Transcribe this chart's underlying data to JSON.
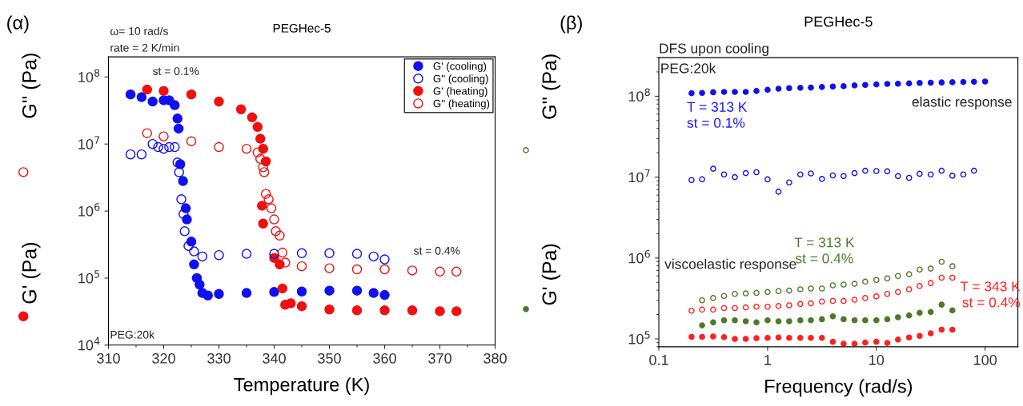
{
  "chart_data": [
    {
      "type": "scatter",
      "title": "PEGHec-5",
      "xlabel": "Temperature (K)",
      "ylabel": [
        "G'' (Pa)",
        "G' (Pa)"
      ],
      "log": "y",
      "grid": false,
      "legend": "top right",
      "marker": "circle",
      "xlim": [
        310,
        380
      ],
      "xticks": [
        310,
        320,
        330,
        340,
        350,
        360,
        370,
        380
      ],
      "ylim": [
        10000,
        200000000
      ],
      "yticks": [
        {
          "value": 10000,
          "label": "10$^{4}$"
        },
        {
          "value": 100000,
          "label": "10$^{5}$"
        },
        {
          "value": 1000000,
          "label": "10$^{6}$"
        },
        {
          "value": 10000000,
          "label": "10$^{7}$"
        },
        {
          "value": 100000000,
          "label": "10$^{8}$"
        }
      ],
      "annotations": [
        "(α)",
        "ω= 10 rad/s",
        "rate = 2 K/min",
        "st = 0.1%",
        "st = 0.4%",
        "PEG:20k"
      ],
      "series": [
        {
          "name": "G' (cooling)",
          "color": "#1010f0",
          "x": [
            314,
            316,
            318,
            320,
            321,
            322,
            322.5,
            322.7,
            323,
            323.5,
            324,
            324.2,
            325,
            325.5,
            326,
            326.5,
            327,
            328,
            330,
            335,
            340,
            345,
            350,
            355,
            358,
            360
          ],
          "values": [
            55000000,
            50000000,
            43000000,
            45000000,
            45000000,
            38000000,
            24000000,
            17000000,
            5000000,
            2800000,
            1100000,
            750000,
            350000,
            160000,
            100000,
            80000,
            60000,
            55000,
            58000,
            60000,
            62000,
            63000,
            65000,
            65000,
            60000,
            56000
          ]
        },
        {
          "name": "G'' (cooling)",
          "color": "#1010f0",
          "x": [
            314,
            316,
            318,
            319,
            320,
            321,
            322,
            322.5,
            322.8,
            323.2,
            323.6,
            323.8,
            324.5,
            325.5,
            327,
            330,
            335,
            340,
            345,
            350,
            355,
            358,
            360
          ],
          "values": [
            7000000,
            7000000,
            10000000,
            9000000,
            8500000,
            9000000,
            9000000,
            5300000,
            3800000,
            1500000,
            900000,
            500000,
            300000,
            250000,
            210000,
            220000,
            230000,
            230000,
            235000,
            235000,
            230000,
            210000,
            190000
          ]
        },
        {
          "name": "G' (heating)",
          "color": "#f01010",
          "x": [
            317,
            320,
            325,
            330,
            334,
            336,
            337,
            337.5,
            338,
            338.5,
            337.8,
            338,
            340,
            341,
            341.5,
            342,
            343,
            345,
            350,
            355,
            360,
            365,
            370,
            373
          ],
          "values": [
            65000000,
            62000000,
            55000000,
            43000000,
            33000000,
            25000000,
            18000000,
            12000000,
            8500000,
            5500000,
            1200000,
            650000,
            200000,
            160000,
            70000,
            40000,
            42000,
            38000,
            34000,
            33000,
            33000,
            33000,
            32000,
            32000
          ]
        },
        {
          "name": "G'' (heating)",
          "color": "#f01010",
          "x": [
            317,
            320,
            325,
            330,
            335,
            337,
            337.5,
            338,
            338.2,
            338.5,
            339,
            339.5,
            340,
            340.3,
            341,
            341.5,
            342,
            345,
            350,
            355,
            360,
            365,
            370,
            373
          ],
          "values": [
            14500000,
            13000000,
            11000000,
            9000000,
            8500000,
            7500000,
            6000000,
            4500000,
            3800000,
            1800000,
            1500000,
            1100000,
            750000,
            500000,
            430000,
            240000,
            170000,
            150000,
            140000,
            135000,
            135000,
            130000,
            125000,
            125000
          ]
        }
      ]
    },
    {
      "type": "scatter",
      "title": "PEGHec-5",
      "xlabel": "Frequency (rad/s)",
      "ylabel": [
        "G'' (Pa)",
        "G' (Pa)"
      ],
      "log": "xy",
      "grid": false,
      "legend": false,
      "marker": "circle",
      "xlim": [
        0.1,
        200
      ],
      "xticks": [
        0.1,
        1,
        10,
        100
      ],
      "ylim": [
        80000,
        300000000
      ],
      "yticks": [
        {
          "value": 100000,
          "label": "10$^{5}$"
        },
        {
          "value": 1000000,
          "label": "10$^{6}$"
        },
        {
          "value": 10000000,
          "label": "10$^{7}$"
        },
        {
          "value": 100000000,
          "label": "10$^{8}$"
        }
      ],
      "annotations": [
        "(β)",
        "DFS upon cooling",
        "PEG:20k",
        "elastic response",
        "viscoelastic response",
        "T = 313 K\nst = 0.1%",
        "T = 313 K\nst = 0.4%",
        "T = 343 K\nst = 0.4%"
      ],
      "series": [
        {
          "color": "#1010f0",
          "x": [
            0.2,
            0.25,
            0.316,
            0.398,
            0.5,
            0.63,
            0.79,
            1,
            1.26,
            1.58,
            2,
            2.5,
            3.16,
            3.98,
            5,
            6.3,
            7.9,
            10,
            12.6,
            15.8,
            20,
            25,
            31.6,
            39.8,
            50,
            63,
            79,
            100
          ],
          "values": [
            109000000,
            110000000,
            112000000,
            113000000,
            113000000,
            113000000,
            116000000,
            120000000,
            124000000,
            126000000,
            127000000,
            128000000,
            130000000,
            132000000,
            133000000,
            136000000,
            138000000,
            140000000,
            142000000,
            143000000,
            144000000,
            146000000,
            147000000,
            148000000,
            149000000,
            150000000,
            151000000,
            152000000
          ]
        },
        {
          "color": "#1010f0",
          "x": [
            0.2,
            0.25,
            0.316,
            0.398,
            0.5,
            0.63,
            0.79,
            1,
            1.26,
            1.58,
            2,
            2.5,
            3.16,
            3.98,
            5,
            6.3,
            7.9,
            10,
            12.6,
            15.8,
            20,
            25,
            31.6,
            39.8,
            50,
            63,
            79
          ],
          "values": [
            9200000,
            9400000,
            12700000,
            10800000,
            10000000,
            11200000,
            11500000,
            9400000,
            6600000,
            8600000,
            10800000,
            11100000,
            9500000,
            10500000,
            10300000,
            11200000,
            12000000,
            11900000,
            11800000,
            10300000,
            9800000,
            11000000,
            10800000,
            12000000,
            10400000,
            10800000,
            12000000
          ]
        },
        {
          "color": "#4e7a27",
          "x": [
            0.25,
            0.316,
            0.398,
            0.5,
            0.63,
            0.79,
            1,
            1.26,
            1.58,
            2,
            2.5,
            3.16,
            3.98,
            5,
            6.3,
            7.9,
            10,
            12.6,
            15.8,
            20,
            25,
            31.6,
            39.8,
            50
          ],
          "values": [
            300000,
            320000,
            340000,
            360000,
            365000,
            370000,
            380000,
            390000,
            395000,
            410000,
            420000,
            420000,
            460000,
            470000,
            480000,
            510000,
            535000,
            560000,
            600000,
            630000,
            720000,
            740000,
            900000,
            790000
          ]
        },
        {
          "color": "#4e7a27",
          "x": [
            0.25,
            0.316,
            0.398,
            0.5,
            0.63,
            0.79,
            1,
            1.26,
            1.58,
            2,
            2.5,
            3.16,
            3.98,
            5,
            6.3,
            7.9,
            10,
            12.6,
            15.8,
            20,
            25,
            31.6,
            39.8,
            50
          ],
          "values": [
            147000,
            160000,
            170000,
            170000,
            165000,
            160000,
            170000,
            165000,
            165000,
            170000,
            170000,
            175000,
            190000,
            175000,
            170000,
            170000,
            170000,
            175000,
            185000,
            195000,
            210000,
            215000,
            265000,
            225000
          ]
        },
        {
          "color": "#ff2020",
          "x": [
            0.2,
            0.25,
            0.316,
            0.398,
            0.5,
            0.63,
            0.79,
            1,
            1.26,
            1.58,
            2,
            2.5,
            3.16,
            3.98,
            5,
            6.3,
            7.9,
            10,
            12.6,
            15.8,
            20,
            25,
            31.6,
            39.8,
            50
          ],
          "values": [
            223000,
            230000,
            230000,
            240000,
            240000,
            245000,
            250000,
            250000,
            255000,
            260000,
            270000,
            275000,
            290000,
            295000,
            295000,
            305000,
            320000,
            335000,
            360000,
            380000,
            410000,
            450000,
            490000,
            570000,
            570000
          ]
        },
        {
          "color": "#ff2020",
          "x": [
            0.2,
            0.25,
            0.316,
            0.398,
            0.5,
            0.63,
            0.79,
            1,
            1.26,
            1.58,
            2,
            2.5,
            3.16,
            3.98,
            5,
            6.3,
            7.9,
            10,
            12.6,
            15.8,
            20,
            25,
            31.6,
            39.8,
            50
          ],
          "values": [
            106000,
            106000,
            107000,
            105000,
            100000,
            100000,
            102000,
            103000,
            104000,
            103000,
            103000,
            103000,
            103000,
            92000,
            87000,
            87000,
            90000,
            92000,
            89000,
            98000,
            104000,
            109000,
            117000,
            130000,
            130000
          ]
        }
      ]
    }
  ]
}
